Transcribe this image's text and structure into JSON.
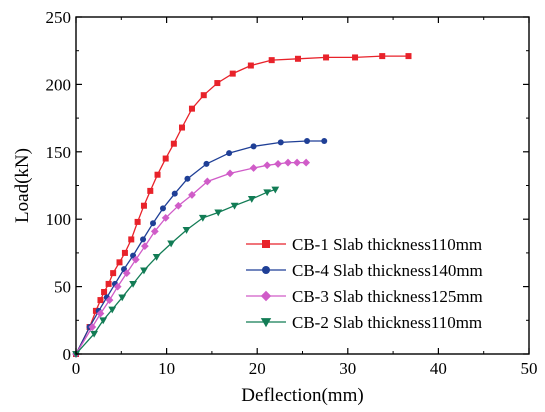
{
  "chart_data": {
    "type": "line",
    "title": "",
    "xlabel": "Deflection(mm)",
    "ylabel": "Load(kN)",
    "xlim": [
      0,
      50
    ],
    "ylim": [
      0,
      250
    ],
    "xticks": [
      "0",
      "10",
      "20",
      "30",
      "40",
      "50"
    ],
    "yticks": [
      "0",
      "50",
      "100",
      "150",
      "200",
      "250"
    ],
    "grid": false,
    "legend_position": "bottom-right",
    "series": [
      {
        "name": "CB-1 Slab thickness110mm",
        "color": "#e8222a",
        "marker": "square",
        "x": [
          0,
          1.5,
          2.2,
          2.7,
          3.1,
          3.6,
          4.1,
          4.8,
          5.4,
          6.1,
          6.8,
          7.5,
          8.2,
          9.0,
          9.9,
          10.8,
          11.7,
          12.8,
          14.1,
          15.6,
          17.3,
          19.3,
          21.6,
          24.5,
          27.6,
          30.8,
          33.8,
          36.7
        ],
        "y": [
          0,
          20,
          32,
          40,
          46,
          52,
          60,
          68,
          75,
          85,
          98,
          110,
          121,
          133,
          145,
          156,
          168,
          182,
          192,
          201,
          208,
          214,
          218,
          219,
          220,
          220,
          221,
          221
        ]
      },
      {
        "name": "CB-4 Slab thickness140mm",
        "color": "#1f3f96",
        "marker": "circle",
        "x": [
          0,
          1.5,
          2.5,
          3.4,
          4.3,
          5.3,
          6.3,
          7.4,
          8.5,
          9.6,
          10.9,
          12.3,
          14.4,
          16.9,
          19.6,
          22.6,
          25.5,
          27.4
        ],
        "y": [
          0,
          20,
          32,
          42,
          52,
          63,
          73,
          85,
          97,
          108,
          119,
          130,
          141,
          149,
          154,
          157,
          158,
          158
        ]
      },
      {
        "name": "CB-3 Slab thickness125mm",
        "color": "#d05cc8",
        "marker": "diamond",
        "x": [
          0,
          1.8,
          2.7,
          3.7,
          4.6,
          5.6,
          6.6,
          7.6,
          8.7,
          9.9,
          11.3,
          12.8,
          14.5,
          17.0,
          19.6,
          21.1,
          22.3,
          23.4,
          24.4,
          25.4
        ],
        "y": [
          0,
          20,
          30,
          40,
          50,
          60,
          70,
          80,
          91,
          101,
          110,
          118,
          128,
          134,
          138,
          140,
          141,
          142,
          142,
          142
        ]
      },
      {
        "name": "CB-2 Slab thickness110mm",
        "color": "#127c55",
        "marker": "triangle-down",
        "x": [
          0,
          2.0,
          3.0,
          4.0,
          5.1,
          6.3,
          7.5,
          8.9,
          10.5,
          12.2,
          14.0,
          15.7,
          17.5,
          19.4,
          21.1,
          22.0
        ],
        "y": [
          0,
          15,
          25,
          33,
          42,
          52,
          62,
          72,
          82,
          92,
          101,
          105,
          110,
          115,
          120,
          122
        ]
      }
    ]
  }
}
